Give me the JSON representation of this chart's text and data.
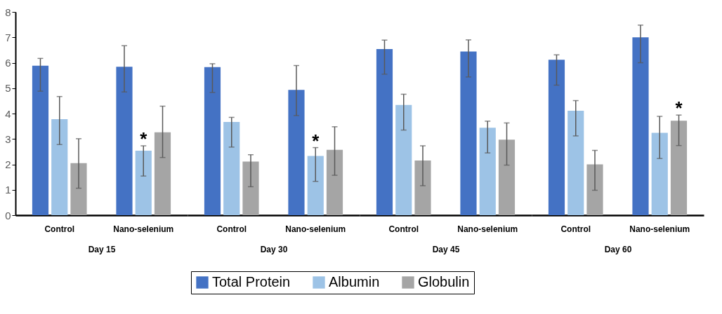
{
  "chart_data": [
    {
      "type": "bar",
      "xlabel": "Day 15",
      "categories": [
        "Control",
        "Nano-selenium"
      ],
      "ylim": [
        0,
        8
      ],
      "yticks": [
        0,
        1,
        2,
        3,
        4,
        5,
        6,
        7,
        8
      ],
      "grid": false,
      "legend": "bottom",
      "series": [
        {
          "name": "Total Protein",
          "color": "#4472c4",
          "values": [
            5.88,
            5.84
          ],
          "errors": [
            [
              4.88,
              6.17
            ],
            [
              4.85,
              6.67
            ]
          ]
        },
        {
          "name": "Albumin",
          "color": "#9dc3e6",
          "values": [
            3.78,
            2.54
          ],
          "errors": [
            [
              2.78,
              4.67
            ],
            [
              1.54,
              2.73
            ]
          ]
        },
        {
          "name": "Globulin",
          "color": "#a5a5a5",
          "values": [
            2.05,
            3.26
          ],
          "errors": [
            [
              1.06,
              3.01
            ],
            [
              2.27,
              4.29
            ]
          ]
        }
      ],
      "annotations": [
        {
          "text": "*",
          "x": "Nano-selenium",
          "y": 2.73
        }
      ]
    },
    {
      "type": "bar",
      "xlabel": "Day 30",
      "categories": [
        "Control",
        "Nano-selenium"
      ],
      "ylim": [
        0,
        8
      ],
      "grid": false,
      "legend": "bottom",
      "tick_labels": "x",
      "series": [
        {
          "name": "Total Protein",
          "color": "#4472c4",
          "values": [
            5.83,
            4.93
          ],
          "errors": [
            [
              4.83,
              5.96
            ],
            [
              3.92,
              5.89
            ]
          ]
        },
        {
          "name": "Albumin",
          "color": "#9dc3e6",
          "values": [
            3.67,
            2.33
          ],
          "errors": [
            [
              2.68,
              3.85
            ],
            [
              1.33,
              2.66
            ]
          ]
        },
        {
          "name": "Globulin",
          "color": "#a5a5a5",
          "values": [
            2.11,
            2.57
          ],
          "errors": [
            [
              1.12,
              2.38
            ],
            [
              1.57,
              3.48
            ]
          ]
        }
      ],
      "annotations": [
        {
          "text": "*",
          "x": "Nano-selenium",
          "y": 2.66
        }
      ]
    },
    {
      "type": "bar",
      "xlabel": "Day 45",
      "categories": [
        "Control",
        "Nano-selenium"
      ],
      "ylim": [
        0,
        8
      ],
      "grid": false,
      "legend": "bottom",
      "tick_labels": "x",
      "series": [
        {
          "name": "Total Protein",
          "color": "#4472c4",
          "values": [
            6.54,
            6.44
          ],
          "errors": [
            [
              5.55,
              6.89
            ],
            [
              5.44,
              6.9
            ]
          ]
        },
        {
          "name": "Albumin",
          "color": "#9dc3e6",
          "values": [
            4.34,
            3.44
          ],
          "errors": [
            [
              3.35,
              4.76
            ],
            [
              2.45,
              3.7
            ]
          ]
        },
        {
          "name": "Globulin",
          "color": "#a5a5a5",
          "values": [
            2.15,
            2.97
          ],
          "errors": [
            [
              1.16,
              2.73
            ],
            [
              1.97,
              3.63
            ]
          ]
        }
      ]
    },
    {
      "type": "bar",
      "xlabel": "Day 60",
      "categories": [
        "Control",
        "Nano-selenium"
      ],
      "ylim": [
        0,
        8
      ],
      "grid": false,
      "legend": "bottom",
      "tick_labels": "x",
      "series": [
        {
          "name": "Total Protein",
          "color": "#4472c4",
          "values": [
            6.12,
            7.0
          ],
          "errors": [
            [
              5.12,
              6.31
            ],
            [
              6.0,
              7.48
            ]
          ]
        },
        {
          "name": "Albumin",
          "color": "#9dc3e6",
          "values": [
            4.11,
            3.24
          ],
          "errors": [
            [
              3.12,
              4.51
            ],
            [
              2.23,
              3.89
            ]
          ]
        },
        {
          "name": "Globulin",
          "color": "#a5a5a5",
          "values": [
            2.0,
            3.72
          ],
          "errors": [
            [
              0.98,
              2.55
            ],
            [
              2.74,
              3.94
            ]
          ]
        }
      ],
      "annotations": [
        {
          "text": "*",
          "x": "Nano-selenium",
          "y": 3.94
        }
      ]
    }
  ]
}
